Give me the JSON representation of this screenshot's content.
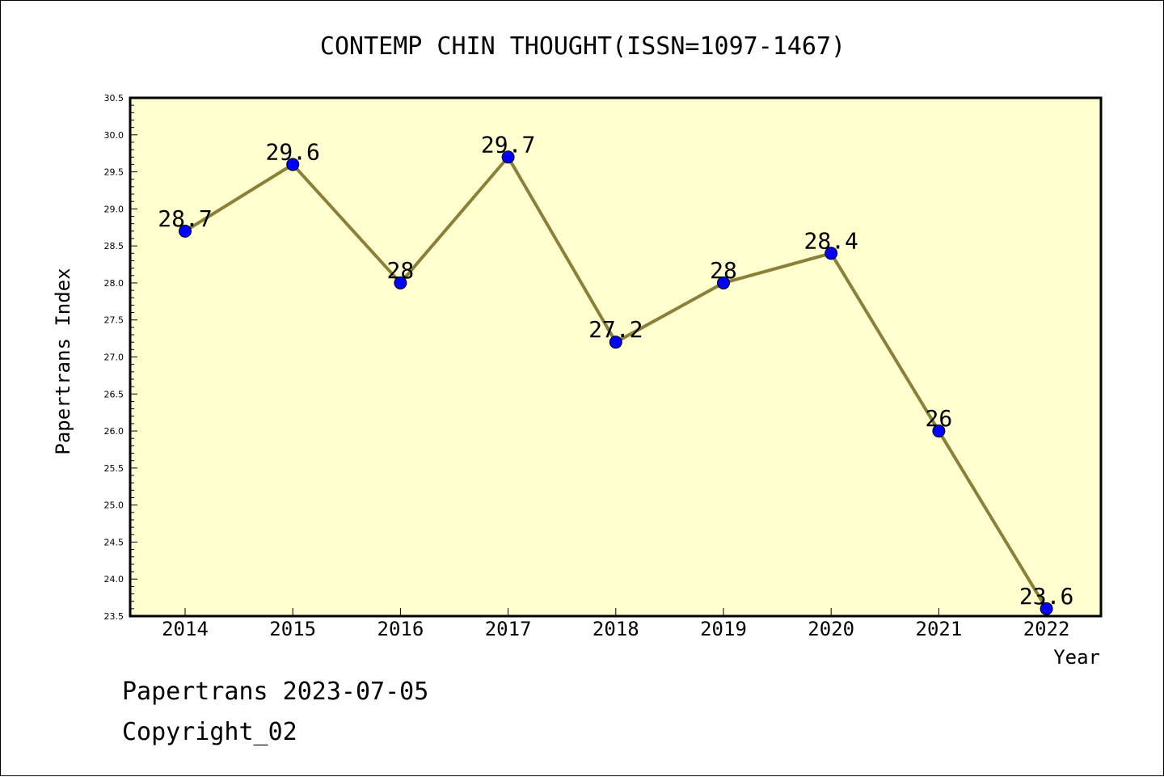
{
  "chart_data": {
    "type": "line",
    "title": "CONTEMP CHIN THOUGHT(ISSN=1097-1467)",
    "xlabel": "Year",
    "ylabel": "Papertrans Index",
    "categories": [
      "2014",
      "2015",
      "2016",
      "2017",
      "2018",
      "2019",
      "2020",
      "2021",
      "2022"
    ],
    "series": [
      {
        "values": [
          28.7,
          29.6,
          28.0,
          29.7,
          27.2,
          28.0,
          28.4,
          26.0,
          23.6
        ],
        "labels": [
          "28.7",
          "29.6",
          "28",
          "29.7",
          "27.2",
          "28",
          "28.4",
          "26",
          "23.6"
        ]
      }
    ],
    "ylim": [
      23.5,
      30.5
    ],
    "yticks": [
      "23.5",
      "24.0",
      "24.5",
      "25.0",
      "25.5",
      "26.0",
      "26.5",
      "27.0",
      "27.5",
      "28.0",
      "28.5",
      "29.0",
      "29.5",
      "30.0",
      "30.5"
    ],
    "grid": false,
    "colors": {
      "plot_background": "#ffffd0",
      "line": "#8b8038",
      "marker": "#0000ff"
    }
  },
  "footer": {
    "line1": "Papertrans 2023-07-05",
    "line2": "Copyright_02"
  }
}
